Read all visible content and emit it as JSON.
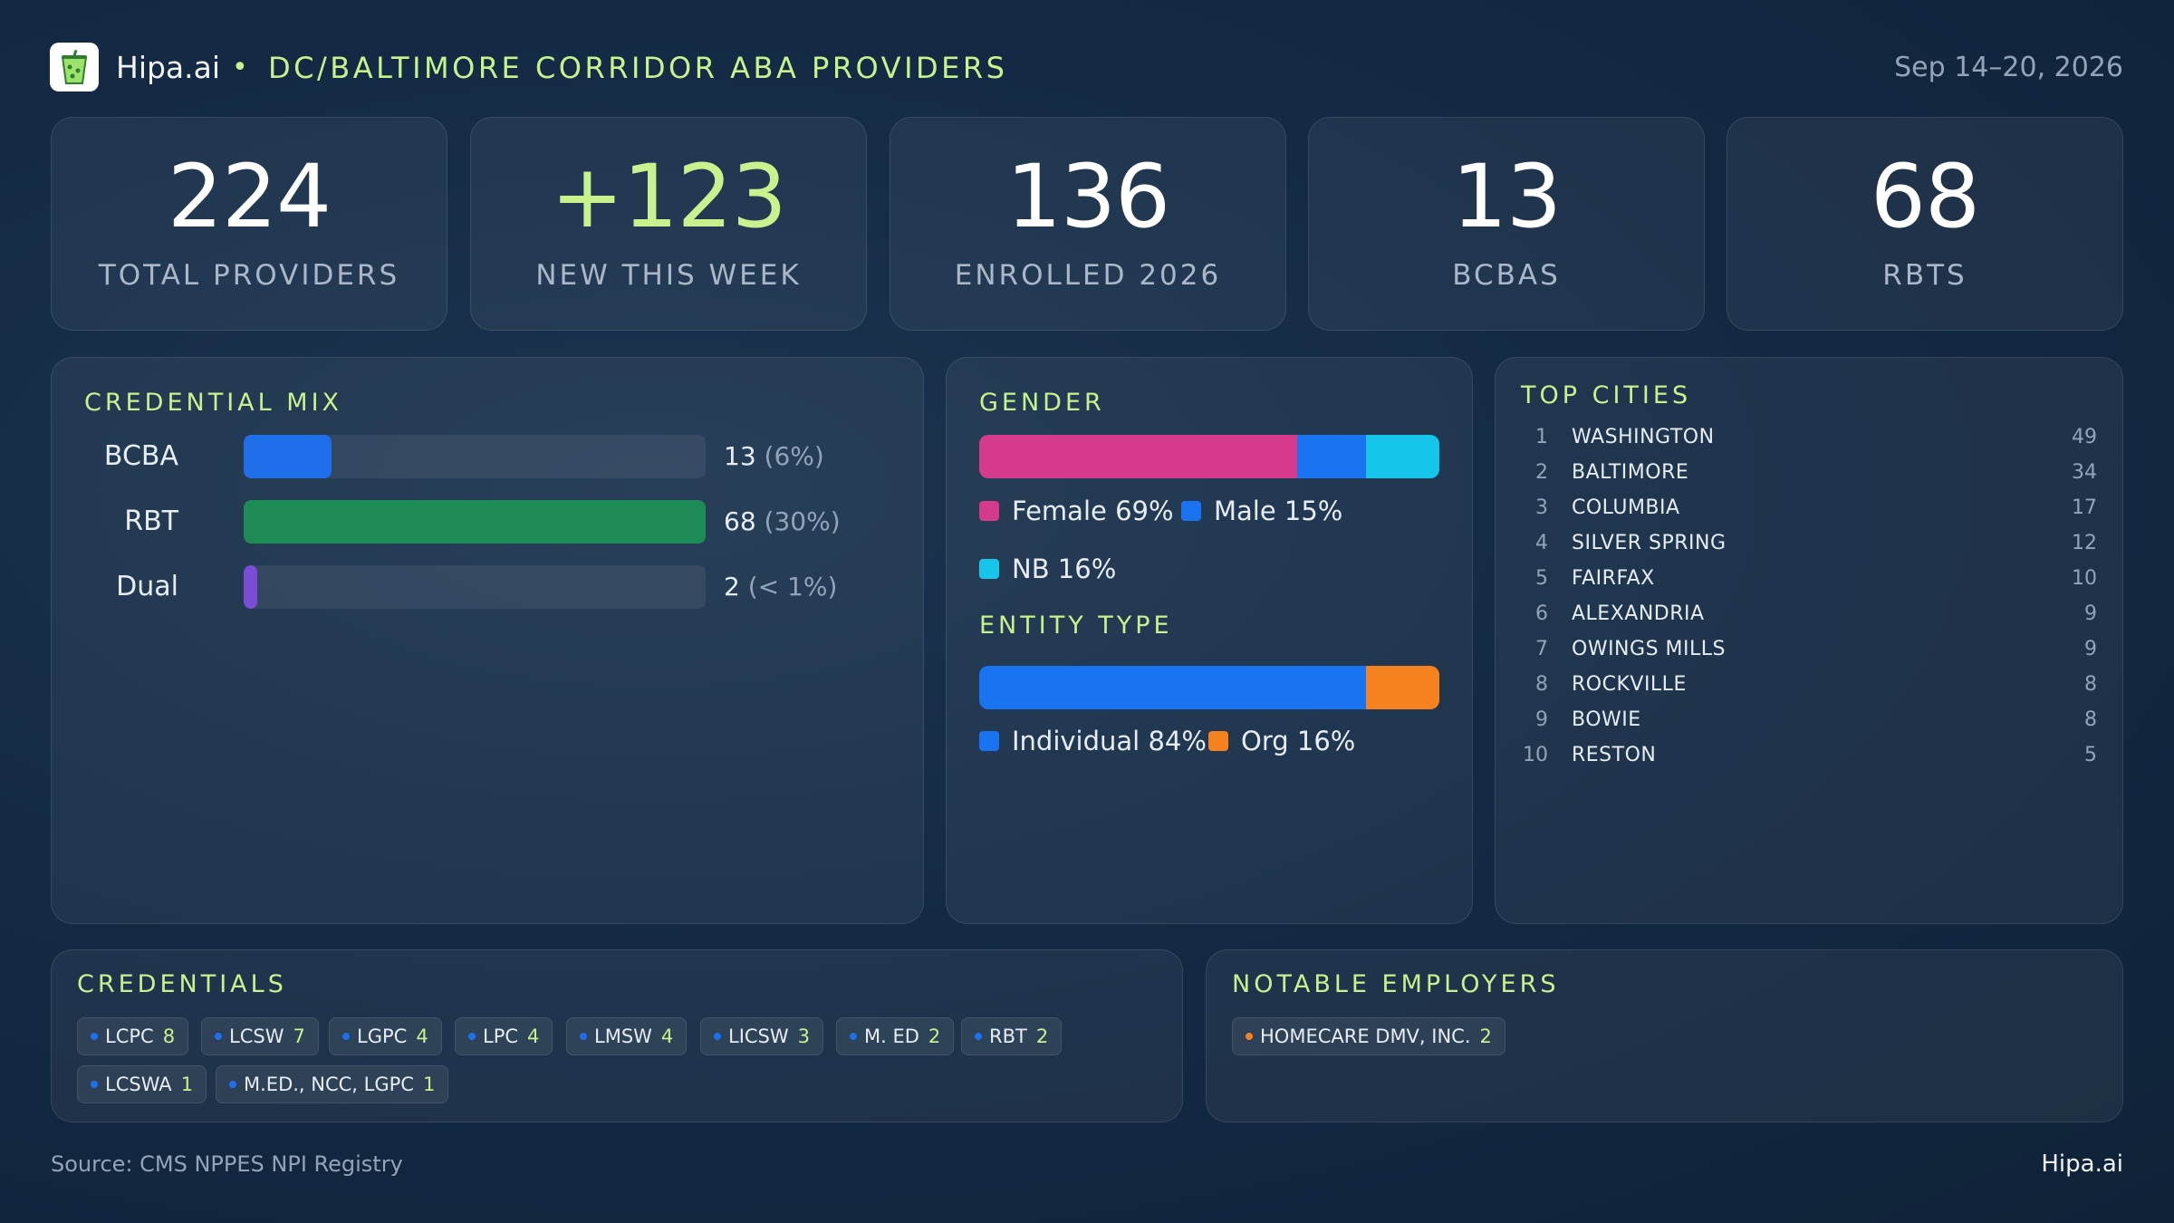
{
  "header": {
    "brand": "Hipa.ai",
    "separator": "•",
    "title": "DC/BALTIMORE CORRIDOR ABA PROVIDERS",
    "date_range": "Sep 14–20, 2026"
  },
  "stats": [
    {
      "value": "224",
      "label": "TOTAL PROVIDERS"
    },
    {
      "value": "+123",
      "label": "NEW THIS WEEK"
    },
    {
      "value": "136",
      "label": "ENROLLED 2026"
    },
    {
      "value": "13",
      "label": "BCBAS"
    },
    {
      "value": "68",
      "label": "RBTS"
    }
  ],
  "credential_mix": {
    "title": "CREDENTIAL MIX",
    "rows": [
      {
        "label": "BCBA",
        "count": "13",
        "pct": "(6%)",
        "fill": 0.19,
        "color": "#1f6feb"
      },
      {
        "label": "RBT",
        "count": "68",
        "pct": "(30%)",
        "fill": 1.0,
        "color": "#1e8a55"
      },
      {
        "label": "Dual",
        "count": "2",
        "pct": "(< 1%)",
        "fill": 0.03,
        "color": "#7b4dd6"
      }
    ]
  },
  "gender": {
    "title": "GENDER",
    "segments": [
      {
        "label": "Female 69%",
        "share": 69,
        "color": "#d63a8c"
      },
      {
        "label": "Male 15%",
        "share": 15,
        "color": "#1a73f0"
      },
      {
        "label": "NB 16%",
        "share": 16,
        "color": "#16c6ea"
      }
    ]
  },
  "entity_type": {
    "title": "ENTITY TYPE",
    "segments": [
      {
        "label": "Individual 84%",
        "share": 84,
        "color": "#1a73f0"
      },
      {
        "label": "Org 16%",
        "share": 16,
        "color": "#f6821f"
      }
    ]
  },
  "top_cities": {
    "title": "TOP CITIES",
    "rows": [
      {
        "rank": "1",
        "name": "WASHINGTON",
        "count": "49"
      },
      {
        "rank": "2",
        "name": "BALTIMORE",
        "count": "34"
      },
      {
        "rank": "3",
        "name": "COLUMBIA",
        "count": "17"
      },
      {
        "rank": "4",
        "name": "SILVER SPRING",
        "count": "12"
      },
      {
        "rank": "5",
        "name": "FAIRFAX",
        "count": "10"
      },
      {
        "rank": "6",
        "name": "ALEXANDRIA",
        "count": "9"
      },
      {
        "rank": "7",
        "name": "OWINGS MILLS",
        "count": "9"
      },
      {
        "rank": "8",
        "name": "ROCKVILLE",
        "count": "8"
      },
      {
        "rank": "9",
        "name": "BOWIE",
        "count": "8"
      },
      {
        "rank": "10",
        "name": "RESTON",
        "count": "5"
      }
    ]
  },
  "credentials": {
    "title": "CREDENTIALS",
    "dot_color": "#1f6feb",
    "chips": [
      {
        "name": "LCPC",
        "count": "8"
      },
      {
        "name": "LCSW",
        "count": "7"
      },
      {
        "name": "LGPC",
        "count": "4"
      },
      {
        "name": "LPC",
        "count": "4"
      },
      {
        "name": "LMSW",
        "count": "4"
      },
      {
        "name": "LICSW",
        "count": "3"
      },
      {
        "name": "M. ED",
        "count": "2"
      },
      {
        "name": "RBT",
        "count": "2"
      },
      {
        "name": "LCSWA",
        "count": "1"
      },
      {
        "name": "M.ED., NCC, LGPC",
        "count": "1"
      }
    ]
  },
  "employers": {
    "title": "NOTABLE EMPLOYERS",
    "dot_color": "#f6821f",
    "chips": [
      {
        "name": "HOMECARE DMV, INC.",
        "count": "2"
      }
    ]
  },
  "footer": {
    "source": "Source: CMS NPPES NPI Registry",
    "brand": "Hipa.ai"
  },
  "icons": {
    "logo": "drink-cup-icon"
  },
  "colors": {
    "accent": "#c7f28e"
  }
}
